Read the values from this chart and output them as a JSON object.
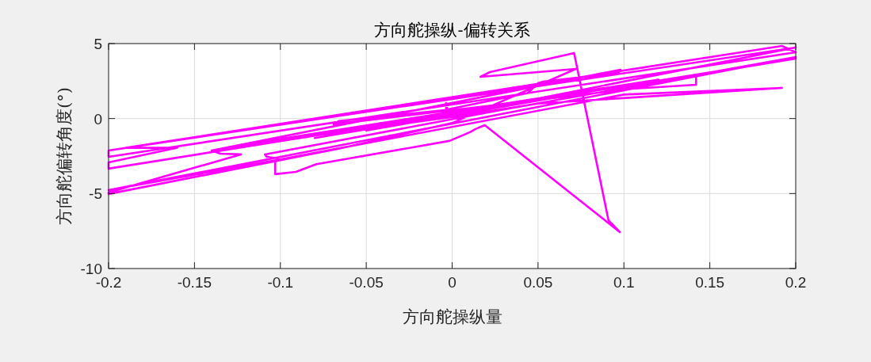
{
  "chart_data": {
    "type": "line",
    "title": "方向舵操纵-偏转关系",
    "xlabel": "方向舵操纵量",
    "ylabel": "方向舵偏转角度(°)",
    "series": [
      {
        "color": "#ff00ff",
        "x": [
          0.0,
          0.2,
          -0.2,
          -0.2,
          0.2,
          0.192,
          -0.19,
          -0.16,
          -0.2,
          -0.2,
          0.2,
          0.142,
          0.142,
          0.105,
          -0.069,
          -0.066,
          -0.0035,
          -0.0035,
          -0.003,
          0.044,
          0.05,
          0.053,
          0.097,
          0.098,
          -0.14,
          -0.135,
          -0.123,
          -0.2,
          -0.2,
          -0.065,
          0.0,
          0.072,
          0.0165,
          0.022,
          0.071,
          0.091,
          0.0976,
          0.019,
          0.0136,
          0.0104,
          -0.0016,
          -0.079,
          -0.091,
          -0.103,
          -0.103,
          -0.101,
          -0.108,
          -0.109,
          0.03,
          0.2,
          -0.2,
          -0.102,
          0.1,
          0.192,
          0.05,
          0.0,
          -0.13,
          0.12,
          -0.08,
          0.09,
          -0.05,
          0.06,
          -0.03,
          0.03
        ],
        "values": [
          0.2,
          4.74,
          -2.13,
          -2.55,
          4.42,
          4.84,
          -1.95,
          -1.95,
          -2.92,
          -3.34,
          4.0,
          2.9,
          2.25,
          1.99,
          -0.38,
          -0.17,
          0.57,
          1.04,
          0.6,
          1.7,
          2.36,
          2.46,
          3.05,
          3.26,
          -2.13,
          -2.34,
          -2.39,
          -4.93,
          -5.03,
          -1.98,
          -0.3,
          3.31,
          2.78,
          3.1,
          4.37,
          -6.78,
          -7.57,
          -0.44,
          -0.7,
          -0.91,
          -1.49,
          -3.04,
          -3.56,
          -3.71,
          -2.92,
          -2.66,
          -2.55,
          -2.39,
          0.6,
          4.1,
          -4.77,
          -2.76,
          1.6,
          2.04,
          1.0,
          0.1,
          -1.9,
          2.6,
          -1.3,
          2.0,
          -0.8,
          1.5,
          -0.4,
          0.9
        ]
      }
    ],
    "xlim": [
      -0.2,
      0.2
    ],
    "ylim": [
      -10,
      5
    ],
    "xticks": [
      -0.2,
      -0.15,
      -0.1,
      -0.05,
      0,
      0.05,
      0.1,
      0.15,
      0.2
    ],
    "yticks": [
      -10,
      -5,
      0,
      5
    ],
    "grid": true,
    "line_style": "solid"
  }
}
